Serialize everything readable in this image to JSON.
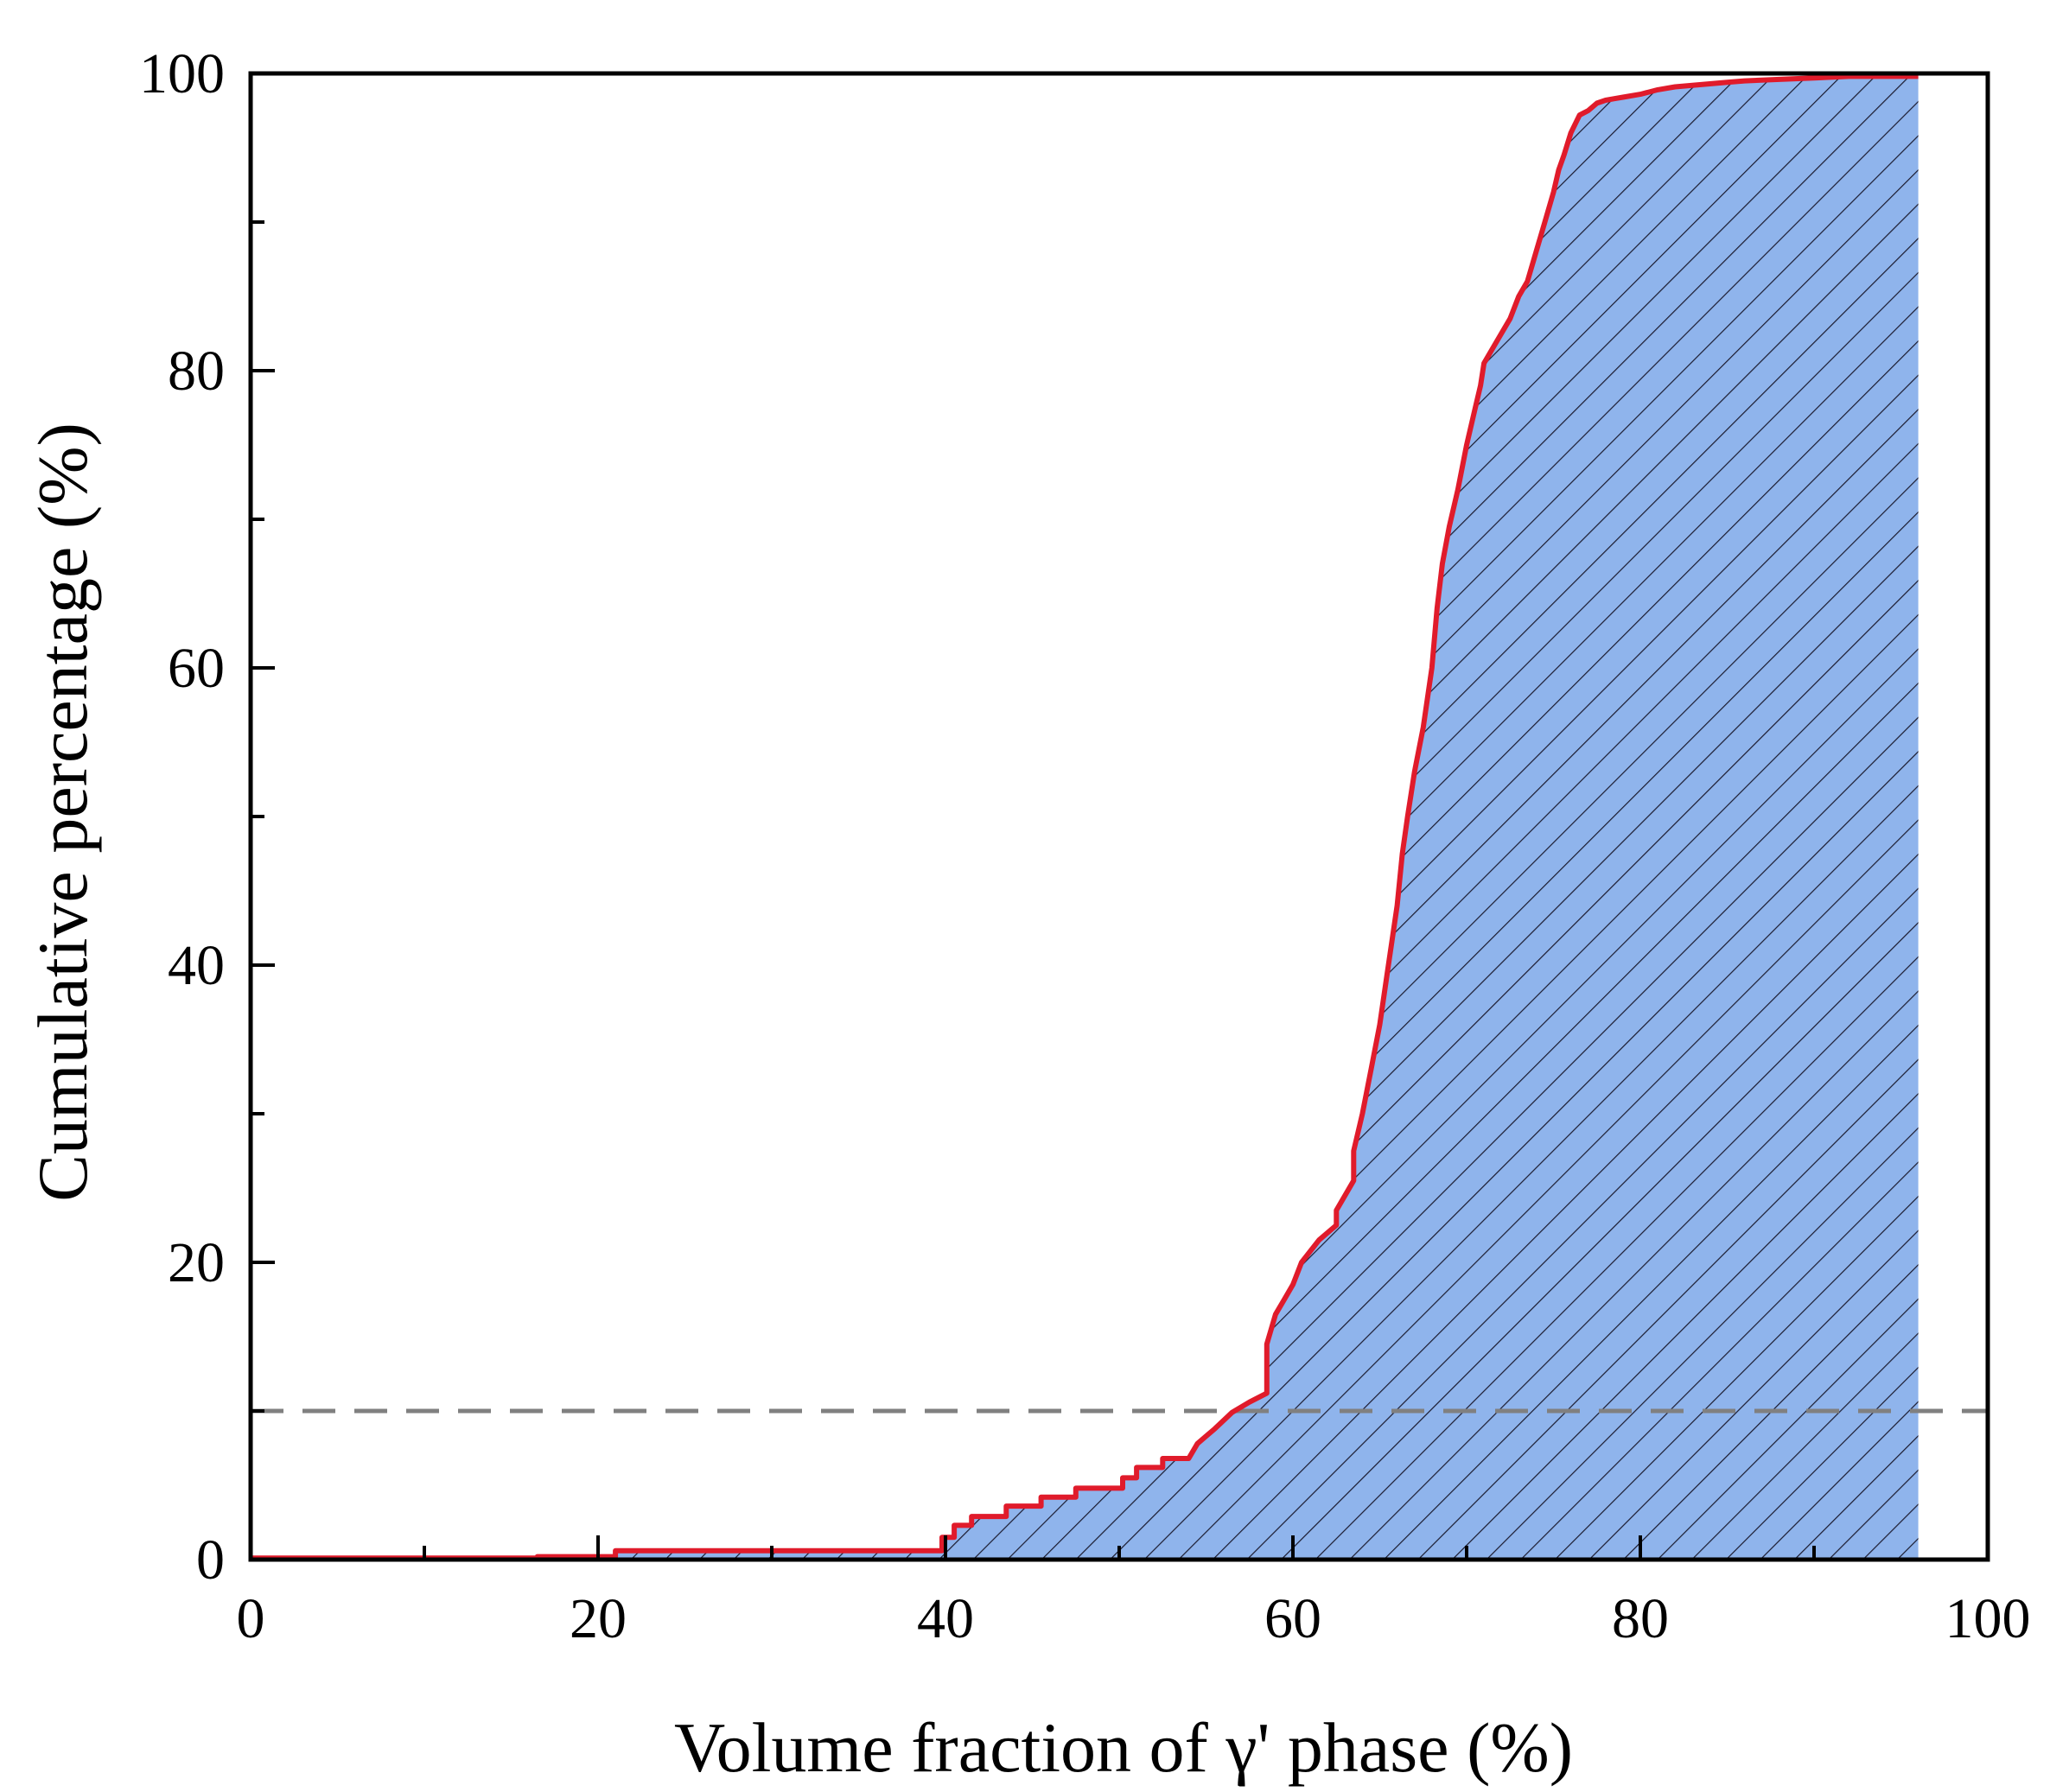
{
  "chart_data": {
    "type": "area",
    "xlabel": "Volume fraction of γ' phase (%)",
    "ylabel": "Cumulative percentage (%)",
    "xlim": [
      0,
      100
    ],
    "ylim": [
      0,
      100
    ],
    "x_ticks": [
      0,
      20,
      40,
      60,
      80,
      100
    ],
    "x_tick_labels": [
      "0",
      "20",
      "40",
      "60",
      "80",
      "100"
    ],
    "y_ticks": [
      0,
      20,
      40,
      60,
      80,
      100
    ],
    "y_tick_labels": [
      "0",
      "20",
      "40",
      "60",
      "80",
      "100"
    ],
    "minor_tick_step": 10,
    "grid": false,
    "legend": "none",
    "fill": {
      "color": "#8fb4ec",
      "hatch": "diagonal"
    },
    "line_color": "#e01b2b",
    "reference_line": {
      "y": 10,
      "style": "dashed",
      "color": "#808080"
    },
    "series": [
      {
        "x": [
          0,
          16.5,
          16.5,
          21,
          21,
          39.8,
          39.8,
          40.5,
          40.5,
          41.5,
          41.5,
          43.5,
          43.5,
          45.5,
          45.5,
          47.5,
          47.5,
          50.2,
          50.2,
          51,
          51,
          52.5,
          52.5,
          54,
          54.5,
          55.5,
          56.5,
          57.5,
          58.5,
          58.5,
          59,
          59.5,
          60,
          60.5,
          61.5,
          62.5,
          62.5,
          63.5,
          63.5,
          64,
          64.5,
          65,
          65.5,
          66,
          66.3,
          66.6,
          67,
          67.5,
          68,
          68.3,
          68.6,
          69,
          69.5,
          70,
          70.5,
          70.8,
          71,
          71.5,
          72,
          72.5,
          73,
          73.5,
          74,
          74.5,
          75,
          75.3,
          75.6,
          76,
          76.5,
          77,
          77.5,
          78,
          78.5,
          79,
          80,
          81,
          82,
          83,
          84,
          85,
          86,
          88,
          90,
          92,
          96
        ],
        "y": [
          0.1,
          0.1,
          0.2,
          0.2,
          0.6,
          0.6,
          1.5,
          1.5,
          2.3,
          2.3,
          2.9,
          2.9,
          3.6,
          3.6,
          4.2,
          4.2,
          4.8,
          4.8,
          5.5,
          5.5,
          6.2,
          6.2,
          6.8,
          6.8,
          7.8,
          8.8,
          9.9,
          10.6,
          11.2,
          14.5,
          16.5,
          17.5,
          18.5,
          20,
          21.5,
          22.5,
          23.5,
          25.5,
          27.5,
          30,
          33,
          36,
          40,
          44,
          47.5,
          50,
          53,
          56,
          60,
          64,
          67,
          69.5,
          72,
          75,
          77.5,
          79,
          80.5,
          81.5,
          82.5,
          83.5,
          85,
          86,
          88,
          90,
          92,
          93.5,
          94.5,
          96,
          97.2,
          97.5,
          98,
          98.2,
          98.3,
          98.4,
          98.6,
          98.9,
          99.1,
          99.2,
          99.3,
          99.4,
          99.5,
          99.6,
          99.7,
          99.8,
          99.8
        ]
      }
    ]
  }
}
